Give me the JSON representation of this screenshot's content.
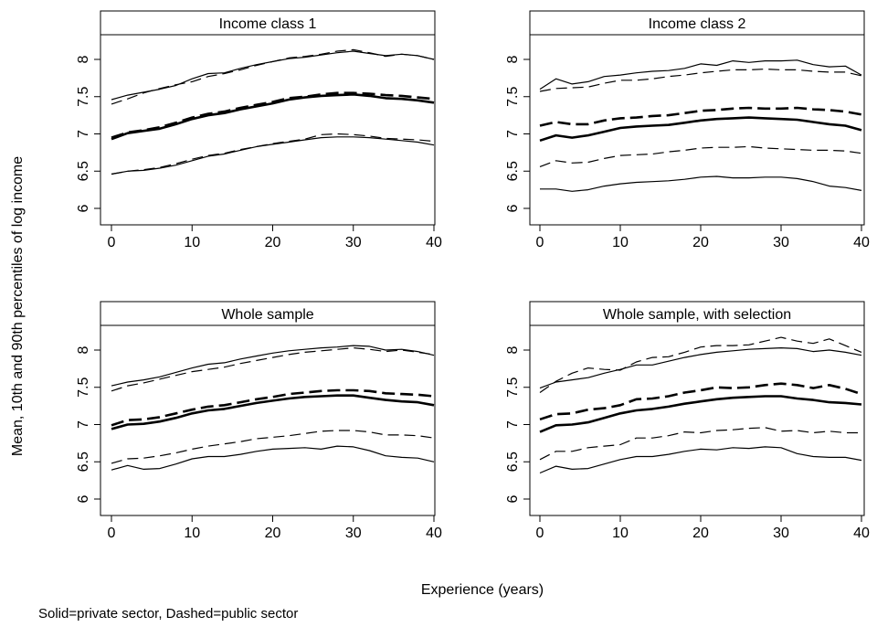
{
  "figure": {
    "ylabel": "Mean, 10th and 90th percentiles of log income",
    "xlabel": "Experience (years)",
    "note": "Solid=private sector, Dashed=public sector"
  },
  "chart_data": [
    {
      "type": "line",
      "title": "Income class 1",
      "x": [
        0,
        2,
        4,
        6,
        8,
        10,
        12,
        14,
        16,
        18,
        20,
        22,
        24,
        26,
        28,
        30,
        32,
        34,
        36,
        38,
        40
      ],
      "xlim": [
        0,
        40
      ],
      "ylim": [
        6,
        8
      ],
      "xticks": [
        0,
        10,
        20,
        30,
        40
      ],
      "yticks": [
        6,
        6.5,
        7,
        7.5,
        8
      ],
      "series": [
        {
          "style": "solid",
          "stat": "p90",
          "values": [
            7.46,
            7.52,
            7.56,
            7.6,
            7.65,
            7.74,
            7.81,
            7.82,
            7.88,
            7.93,
            7.97,
            8.01,
            8.03,
            8.06,
            8.09,
            8.11,
            8.08,
            8.05,
            8.07,
            8.05,
            8.0
          ]
        },
        {
          "style": "dashed",
          "stat": "p90",
          "values": [
            7.4,
            7.47,
            7.55,
            7.61,
            7.66,
            7.7,
            7.77,
            7.81,
            7.86,
            7.92,
            7.97,
            8.02,
            8.04,
            8.07,
            8.11,
            8.13,
            8.09,
            8.04,
            8.07,
            8.05,
            8.0
          ]
        },
        {
          "style": "solid",
          "stat": "mean",
          "values": [
            6.93,
            7.01,
            7.04,
            7.07,
            7.13,
            7.2,
            7.25,
            7.28,
            7.33,
            7.37,
            7.41,
            7.46,
            7.49,
            7.51,
            7.52,
            7.53,
            7.51,
            7.48,
            7.47,
            7.45,
            7.42
          ]
        },
        {
          "style": "dashed",
          "stat": "mean",
          "values": [
            6.95,
            7.02,
            7.05,
            7.09,
            7.15,
            7.22,
            7.27,
            7.3,
            7.35,
            7.39,
            7.43,
            7.48,
            7.5,
            7.53,
            7.55,
            7.55,
            7.54,
            7.52,
            7.51,
            7.49,
            7.47
          ]
        },
        {
          "style": "solid",
          "stat": "p10",
          "values": [
            6.46,
            6.5,
            6.51,
            6.54,
            6.58,
            6.64,
            6.7,
            6.73,
            6.78,
            6.83,
            6.86,
            6.89,
            6.92,
            6.95,
            6.96,
            6.96,
            6.95,
            6.93,
            6.91,
            6.89,
            6.85
          ]
        },
        {
          "style": "dashed",
          "stat": "p10",
          "values": [
            6.46,
            6.5,
            6.52,
            6.55,
            6.6,
            6.66,
            6.71,
            6.74,
            6.79,
            6.83,
            6.87,
            6.9,
            6.93,
            6.99,
            7.0,
            6.99,
            6.97,
            6.94,
            6.93,
            6.92,
            6.9
          ]
        }
      ]
    },
    {
      "type": "line",
      "title": "Income class 2",
      "x": [
        0,
        2,
        4,
        6,
        8,
        10,
        12,
        14,
        16,
        18,
        20,
        22,
        24,
        26,
        28,
        30,
        32,
        34,
        36,
        38,
        40
      ],
      "xlim": [
        0,
        40
      ],
      "ylim": [
        6,
        8
      ],
      "xticks": [
        0,
        10,
        20,
        30,
        40
      ],
      "yticks": [
        6,
        6.5,
        7,
        7.5,
        8
      ],
      "series": [
        {
          "style": "solid",
          "stat": "p90",
          "values": [
            7.6,
            7.74,
            7.67,
            7.7,
            7.77,
            7.79,
            7.82,
            7.84,
            7.85,
            7.88,
            7.94,
            7.92,
            7.98,
            7.96,
            7.98,
            7.98,
            7.99,
            7.93,
            7.9,
            7.91,
            7.79
          ]
        },
        {
          "style": "dashed",
          "stat": "p90",
          "values": [
            7.57,
            7.61,
            7.62,
            7.63,
            7.68,
            7.72,
            7.72,
            7.74,
            7.77,
            7.79,
            7.82,
            7.84,
            7.86,
            7.86,
            7.87,
            7.86,
            7.86,
            7.84,
            7.83,
            7.83,
            7.78
          ]
        },
        {
          "style": "solid",
          "stat": "mean",
          "values": [
            6.91,
            6.98,
            6.95,
            6.98,
            7.03,
            7.08,
            7.1,
            7.11,
            7.12,
            7.15,
            7.18,
            7.2,
            7.21,
            7.22,
            7.21,
            7.2,
            7.19,
            7.16,
            7.13,
            7.11,
            7.05
          ]
        },
        {
          "style": "dashed",
          "stat": "mean",
          "values": [
            7.11,
            7.16,
            7.13,
            7.13,
            7.18,
            7.21,
            7.22,
            7.24,
            7.25,
            7.28,
            7.31,
            7.32,
            7.34,
            7.35,
            7.34,
            7.34,
            7.35,
            7.33,
            7.32,
            7.3,
            7.26
          ]
        },
        {
          "style": "solid",
          "stat": "p10",
          "values": [
            6.26,
            6.26,
            6.23,
            6.25,
            6.3,
            6.33,
            6.35,
            6.36,
            6.37,
            6.39,
            6.42,
            6.43,
            6.41,
            6.41,
            6.42,
            6.42,
            6.4,
            6.36,
            6.3,
            6.28,
            6.24
          ]
        },
        {
          "style": "dashed",
          "stat": "p10",
          "values": [
            6.56,
            6.64,
            6.61,
            6.62,
            6.67,
            6.71,
            6.72,
            6.73,
            6.76,
            6.78,
            6.81,
            6.82,
            6.82,
            6.83,
            6.81,
            6.8,
            6.79,
            6.78,
            6.78,
            6.77,
            6.74
          ]
        }
      ]
    },
    {
      "type": "line",
      "title": "Whole sample",
      "x": [
        0,
        2,
        4,
        6,
        8,
        10,
        12,
        14,
        16,
        18,
        20,
        22,
        24,
        26,
        28,
        30,
        32,
        34,
        36,
        38,
        40
      ],
      "xlim": [
        0,
        40
      ],
      "ylim": [
        6,
        8
      ],
      "xticks": [
        0,
        10,
        20,
        30,
        40
      ],
      "yticks": [
        6,
        6.5,
        7,
        7.5,
        8
      ],
      "series": [
        {
          "style": "solid",
          "stat": "p90",
          "values": [
            7.52,
            7.57,
            7.6,
            7.64,
            7.7,
            7.76,
            7.81,
            7.83,
            7.88,
            7.92,
            7.96,
            7.99,
            8.01,
            8.03,
            8.04,
            8.06,
            8.05,
            8.0,
            8.01,
            7.98,
            7.93
          ]
        },
        {
          "style": "dashed",
          "stat": "p90",
          "values": [
            7.45,
            7.52,
            7.56,
            7.61,
            7.66,
            7.71,
            7.74,
            7.77,
            7.82,
            7.86,
            7.9,
            7.94,
            7.97,
            7.99,
            8.01,
            8.03,
            8.01,
            7.98,
            8.0,
            7.97,
            7.94
          ]
        },
        {
          "style": "solid",
          "stat": "mean",
          "values": [
            6.94,
            7.0,
            7.01,
            7.04,
            7.09,
            7.15,
            7.19,
            7.21,
            7.25,
            7.29,
            7.32,
            7.35,
            7.37,
            7.38,
            7.39,
            7.39,
            7.36,
            7.33,
            7.31,
            7.3,
            7.26
          ]
        },
        {
          "style": "dashed",
          "stat": "mean",
          "values": [
            6.99,
            7.06,
            7.07,
            7.1,
            7.15,
            7.2,
            7.24,
            7.26,
            7.3,
            7.34,
            7.37,
            7.41,
            7.43,
            7.45,
            7.46,
            7.46,
            7.45,
            7.42,
            7.41,
            7.4,
            7.38
          ]
        },
        {
          "style": "solid",
          "stat": "p10",
          "values": [
            6.39,
            6.45,
            6.4,
            6.41,
            6.47,
            6.54,
            6.57,
            6.57,
            6.6,
            6.64,
            6.67,
            6.68,
            6.69,
            6.67,
            6.71,
            6.7,
            6.65,
            6.58,
            6.56,
            6.55,
            6.5
          ]
        },
        {
          "style": "dashed",
          "stat": "p10",
          "values": [
            6.48,
            6.54,
            6.55,
            6.58,
            6.62,
            6.67,
            6.71,
            6.74,
            6.77,
            6.81,
            6.83,
            6.85,
            6.88,
            6.91,
            6.92,
            6.92,
            6.9,
            6.86,
            6.86,
            6.85,
            6.82
          ]
        }
      ]
    },
    {
      "type": "line",
      "title": "Whole sample, with selection",
      "x": [
        0,
        2,
        4,
        6,
        8,
        10,
        12,
        14,
        16,
        18,
        20,
        22,
        24,
        26,
        28,
        30,
        32,
        34,
        36,
        38,
        40
      ],
      "xlim": [
        0,
        40
      ],
      "ylim": [
        6,
        8
      ],
      "xticks": [
        0,
        10,
        20,
        30,
        40
      ],
      "yticks": [
        6,
        6.5,
        7,
        7.5,
        8
      ],
      "series": [
        {
          "style": "solid",
          "stat": "p90",
          "values": [
            7.49,
            7.57,
            7.6,
            7.63,
            7.69,
            7.74,
            7.8,
            7.8,
            7.85,
            7.9,
            7.94,
            7.97,
            7.99,
            8.01,
            8.02,
            8.03,
            8.02,
            7.98,
            8.0,
            7.97,
            7.93
          ]
        },
        {
          "style": "dashed",
          "stat": "p90",
          "values": [
            7.43,
            7.58,
            7.69,
            7.76,
            7.74,
            7.73,
            7.84,
            7.9,
            7.91,
            7.97,
            8.04,
            8.06,
            8.06,
            8.07,
            8.12,
            8.17,
            8.12,
            8.09,
            8.15,
            8.06,
            7.97
          ]
        },
        {
          "style": "solid",
          "stat": "mean",
          "values": [
            6.9,
            6.99,
            7.0,
            7.03,
            7.09,
            7.15,
            7.19,
            7.21,
            7.24,
            7.28,
            7.31,
            7.34,
            7.36,
            7.37,
            7.38,
            7.38,
            7.35,
            7.33,
            7.3,
            7.29,
            7.27
          ]
        },
        {
          "style": "dashed",
          "stat": "mean",
          "values": [
            7.07,
            7.14,
            7.15,
            7.2,
            7.22,
            7.26,
            7.34,
            7.35,
            7.38,
            7.43,
            7.46,
            7.5,
            7.49,
            7.5,
            7.53,
            7.55,
            7.53,
            7.49,
            7.53,
            7.48,
            7.41
          ]
        },
        {
          "style": "solid",
          "stat": "p10",
          "values": [
            6.35,
            6.44,
            6.4,
            6.41,
            6.47,
            6.53,
            6.57,
            6.57,
            6.6,
            6.64,
            6.67,
            6.66,
            6.69,
            6.68,
            6.7,
            6.69,
            6.61,
            6.57,
            6.56,
            6.56,
            6.52
          ]
        },
        {
          "style": "dashed",
          "stat": "p10",
          "values": [
            6.53,
            6.64,
            6.64,
            6.69,
            6.71,
            6.73,
            6.82,
            6.82,
            6.85,
            6.9,
            6.89,
            6.92,
            6.93,
            6.95,
            6.96,
            6.91,
            6.92,
            6.89,
            6.91,
            6.89,
            6.89
          ]
        }
      ]
    }
  ]
}
